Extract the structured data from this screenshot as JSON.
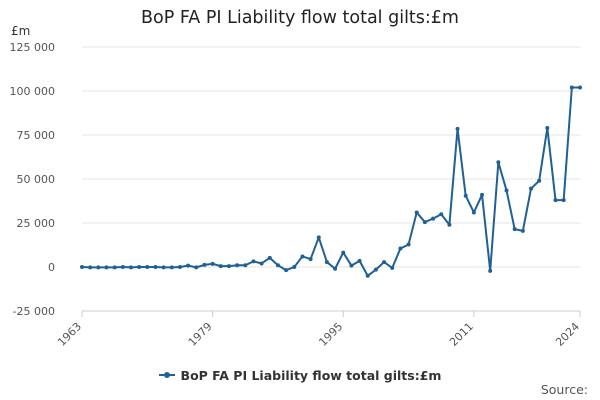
{
  "chart_data": {
    "type": "line",
    "title": "BoP FA PI Liability flow total gilts:£m",
    "ylabel": "£m",
    "xlabel": "",
    "source": "Source:",
    "ylim": [
      -25000,
      125000
    ],
    "yticks": [
      125000,
      100000,
      75000,
      50000,
      25000,
      0,
      -25000
    ],
    "ytick_labels": [
      "125 000",
      "100 000",
      "75 000",
      "50 000",
      "25 000",
      "0",
      "-25 000"
    ],
    "xlim": [
      1963,
      2024
    ],
    "xticks": [
      "1963",
      "1979",
      "1995",
      "2011",
      "2024"
    ],
    "grid": true,
    "series": [
      {
        "name": "BoP FA PI Liability flow total gilts:£m",
        "color": "#206095",
        "x": [
          1963,
          1964,
          1965,
          1966,
          1967,
          1968,
          1969,
          1970,
          1971,
          1972,
          1973,
          1974,
          1975,
          1976,
          1977,
          1978,
          1979,
          1980,
          1981,
          1982,
          1983,
          1984,
          1985,
          1986,
          1987,
          1988,
          1989,
          1990,
          1991,
          1992,
          1993,
          1994,
          1995,
          1996,
          1997,
          1998,
          1999,
          2000,
          2001,
          2002,
          2003,
          2004,
          2005,
          2006,
          2007,
          2008,
          2009,
          2010,
          2011,
          2012,
          2013,
          2014,
          2015,
          2016,
          2017,
          2018,
          2019,
          2020,
          2021,
          2022,
          2023,
          2024
        ],
        "values": [
          0,
          -200,
          -200,
          -200,
          -200,
          0,
          -200,
          0,
          0,
          0,
          -200,
          -200,
          0,
          800,
          -200,
          1200,
          1800,
          500,
          500,
          1000,
          1000,
          3200,
          2000,
          5200,
          1000,
          -1800,
          0,
          6000,
          4500,
          16800,
          2800,
          -1000,
          8200,
          800,
          3500,
          -5000,
          -1500,
          2800,
          -500,
          10500,
          12800,
          31000,
          25500,
          27500,
          30000,
          24000,
          78500,
          40500,
          31000,
          41000,
          -2200,
          59500,
          43500,
          21500,
          20500,
          44500,
          49000,
          79000,
          38000,
          38000,
          102000,
          102000
        ]
      }
    ]
  }
}
